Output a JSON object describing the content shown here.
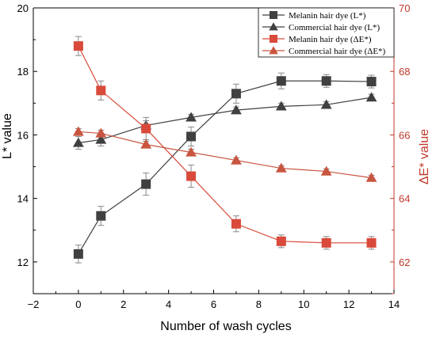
{
  "chart_data": {
    "type": "line",
    "xlabel": "Number of wash cycles",
    "ylabel_left": "L* value",
    "ylabel_right": "ΔE* value",
    "xlim": [
      -2,
      14
    ],
    "ylim_left": [
      11,
      20
    ],
    "ylim_right": [
      61,
      70
    ],
    "x_ticks": [
      "−2",
      "0",
      "2",
      "4",
      "6",
      "8",
      "10",
      "12",
      "14"
    ],
    "y_left_ticks": [
      "12",
      "14",
      "16",
      "18",
      "20"
    ],
    "y_right_ticks": [
      "62",
      "64",
      "66",
      "68",
      "70"
    ],
    "grid": false,
    "legend_position": "top-right",
    "series": [
      {
        "name": "Melanin hair dye (L*)",
        "axis": "left",
        "marker": "square",
        "color": "#404040",
        "x": [
          0,
          1,
          3,
          5,
          7,
          9,
          11,
          13
        ],
        "y": [
          12.25,
          13.45,
          14.45,
          15.95,
          17.3,
          17.7,
          17.7,
          17.68
        ],
        "err": [
          0.28,
          0.3,
          0.35,
          0.3,
          0.3,
          0.25,
          0.2,
          0.2
        ]
      },
      {
        "name": "Commercial hair dye (L*)",
        "axis": "left",
        "marker": "triangle",
        "color": "#404040",
        "x": [
          0,
          1,
          3,
          5,
          7,
          9,
          11,
          13
        ],
        "y": [
          15.75,
          15.85,
          16.3,
          16.55,
          16.78,
          16.9,
          16.95,
          17.18
        ],
        "err": [
          0.2,
          0.2,
          0.15,
          0.1,
          0.1,
          0.1,
          0.1,
          0.1
        ]
      },
      {
        "name": "Melanin hair dye (ΔE*)",
        "axis": "right",
        "marker": "square",
        "color": "#d94a3a",
        "x": [
          0,
          1,
          3,
          5,
          7,
          9,
          11,
          13
        ],
        "y": [
          68.8,
          67.4,
          66.2,
          64.7,
          63.2,
          62.65,
          62.6,
          62.6
        ],
        "err": [
          0.3,
          0.3,
          0.35,
          0.35,
          0.25,
          0.2,
          0.2,
          0.2
        ]
      },
      {
        "name": "Commercial hair dye (ΔE*)",
        "axis": "right",
        "marker": "triangle",
        "color": "#c8553f",
        "x": [
          0,
          1,
          3,
          5,
          7,
          9,
          11,
          13
        ],
        "y": [
          66.1,
          66.05,
          65.7,
          65.45,
          65.2,
          64.95,
          64.85,
          64.65
        ],
        "err": [
          0.1,
          0.1,
          0.1,
          0.1,
          0.08,
          0.08,
          0.08,
          0.08
        ]
      }
    ],
    "colors": {
      "left_axis": "#000000",
      "right_axis": "#c0392b"
    }
  }
}
